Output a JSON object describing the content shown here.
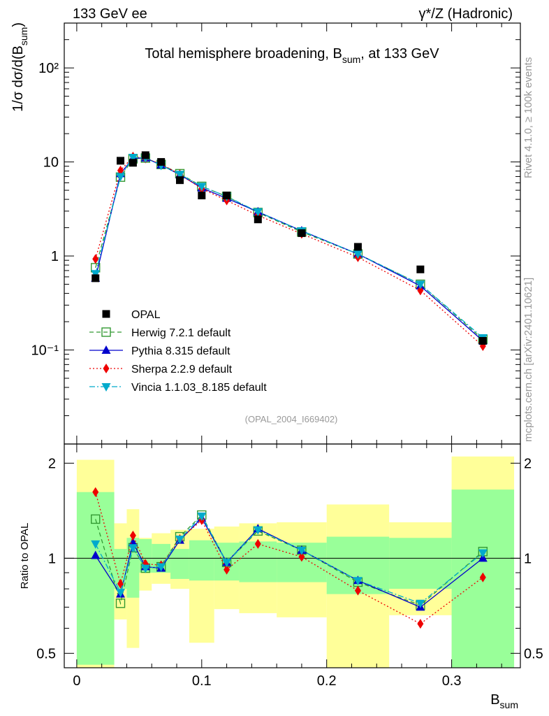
{
  "header": {
    "left": "133 GeV ee",
    "right": "γ*/Z (Hadronic)"
  },
  "side_labels": {
    "rivet": "Rivet 4.1.0, ≥ 100k events",
    "mcplots": "mcplots.cern.ch [arXiv:2401.10621]"
  },
  "chart_data": {
    "type": "line",
    "title": "Total hemisphere broadening, B",
    "title_sub": "sum",
    "title_tail": ", at 133 GeV",
    "watermark": "(OPAL_2004_I669402)",
    "xlabel": "B",
    "xlabel_sub": "sum",
    "ylabel": "1/σ  dσ/d(B",
    "ylabel_sub": "sum",
    "ylabel_tail": ")",
    "ratio_ylabel": "Ratio to OPAL",
    "xlim": [
      -0.01,
      0.355
    ],
    "ylim_main": [
      0.01,
      300
    ],
    "ylim_ratio": [
      0.45,
      2.3
    ],
    "yscale": "log",
    "xticks": [
      "0",
      "0.1",
      "0.2",
      "0.3"
    ],
    "main_yticks": [
      "10⁻¹",
      "1",
      "10",
      "10²"
    ],
    "ratio_yticks": [
      "0.5",
      "1",
      "2"
    ],
    "bins": [
      {
        "lo": 0.0,
        "hi": 0.03,
        "x": 0.015
      },
      {
        "lo": 0.03,
        "hi": 0.04,
        "x": 0.035
      },
      {
        "lo": 0.04,
        "hi": 0.05,
        "x": 0.045
      },
      {
        "lo": 0.05,
        "hi": 0.06,
        "x": 0.055
      },
      {
        "lo": 0.06,
        "hi": 0.075,
        "x": 0.0675
      },
      {
        "lo": 0.075,
        "hi": 0.09,
        "x": 0.0825
      },
      {
        "lo": 0.09,
        "hi": 0.11,
        "x": 0.1
      },
      {
        "lo": 0.11,
        "hi": 0.13,
        "x": 0.12
      },
      {
        "lo": 0.13,
        "hi": 0.16,
        "x": 0.145
      },
      {
        "lo": 0.16,
        "hi": 0.2,
        "x": 0.18
      },
      {
        "lo": 0.2,
        "hi": 0.25,
        "x": 0.225
      },
      {
        "lo": 0.25,
        "hi": 0.3,
        "x": 0.275
      },
      {
        "lo": 0.3,
        "hi": 0.35,
        "x": 0.325
      }
    ],
    "data": {
      "name": "OPAL",
      "values": [
        0.58,
        10.3,
        9.8,
        11.8,
        10.0,
        6.4,
        4.4,
        4.4,
        2.45,
        1.75,
        1.25,
        0.72,
        0.125
      ],
      "band_ratio_stat": [
        [
          0.46,
          1.62
        ],
        [
          0.8,
          1.07
        ],
        [
          0.75,
          1.16
        ],
        [
          0.9,
          1.15
        ],
        [
          0.9,
          1.11
        ],
        [
          0.86,
          1.07
        ],
        [
          0.85,
          1.14
        ],
        [
          0.85,
          1.12
        ],
        [
          0.84,
          1.13
        ],
        [
          0.84,
          1.12
        ],
        [
          0.77,
          1.17
        ],
        [
          0.8,
          1.16
        ],
        [
          0.39,
          1.65
        ]
      ],
      "band_ratio_total": [
        [
          0.33,
          2.05
        ],
        [
          0.64,
          1.29
        ],
        [
          0.52,
          1.43
        ],
        [
          0.79,
          1.16
        ],
        [
          0.83,
          1.2
        ],
        [
          0.8,
          1.23
        ],
        [
          0.54,
          1.24
        ],
        [
          0.69,
          1.26
        ],
        [
          0.67,
          1.29
        ],
        [
          0.65,
          1.3
        ],
        [
          0.43,
          1.48
        ],
        [
          0.66,
          1.3
        ],
        [
          0.34,
          2.1
        ]
      ],
      "color": "#000000"
    },
    "series": [
      {
        "name": "Herwig 7.2.1 default",
        "color": "#339933",
        "marker": "open-square",
        "dash": "6,4",
        "values": [
          0.75,
          6.9,
          10.8,
          11.0,
          9.4,
          7.5,
          5.5,
          4.3,
          2.9,
          1.8,
          1.05,
          0.5,
          0.13
        ],
        "ratio": [
          1.33,
          0.72,
          1.08,
          0.93,
          0.94,
          1.17,
          1.37,
          0.97,
          1.22,
          1.06,
          0.84,
          0.71,
          1.05
        ]
      },
      {
        "name": "Pythia 8.315 default",
        "color": "#0000cc",
        "marker": "triangle-up",
        "dash": "",
        "values": [
          0.58,
          7.5,
          11.0,
          11.0,
          9.3,
          7.3,
          5.3,
          4.1,
          2.95,
          1.85,
          1.05,
          0.48,
          0.125
        ],
        "ratio": [
          1.02,
          0.77,
          1.12,
          0.94,
          0.93,
          1.14,
          1.34,
          0.97,
          1.24,
          1.06,
          0.85,
          0.7,
          1.0
        ]
      },
      {
        "name": "Sherpa 2.2.9 default",
        "color": "#ee0000",
        "marker": "diamond",
        "dash": "2,3",
        "values": [
          0.93,
          8.1,
          11.4,
          10.9,
          9.5,
          7.4,
          5.2,
          3.9,
          2.7,
          1.72,
          0.97,
          0.43,
          0.11
        ],
        "ratio": [
          1.62,
          0.83,
          1.18,
          0.96,
          0.95,
          1.15,
          1.32,
          0.92,
          1.11,
          1.01,
          0.79,
          0.62,
          0.87
        ]
      },
      {
        "name": "Vincia 1.1.03_8.185 default",
        "color": "#00aacc",
        "marker": "triangle-down",
        "dash": "8,3,2,3",
        "values": [
          0.65,
          7.0,
          11.2,
          11.0,
          9.2,
          7.4,
          5.5,
          4.3,
          2.95,
          1.85,
          1.05,
          0.5,
          0.135
        ],
        "ratio": [
          1.11,
          0.78,
          1.08,
          0.93,
          0.94,
          1.15,
          1.36,
          0.97,
          1.23,
          1.06,
          0.85,
          0.72,
          1.04
        ]
      }
    ]
  }
}
